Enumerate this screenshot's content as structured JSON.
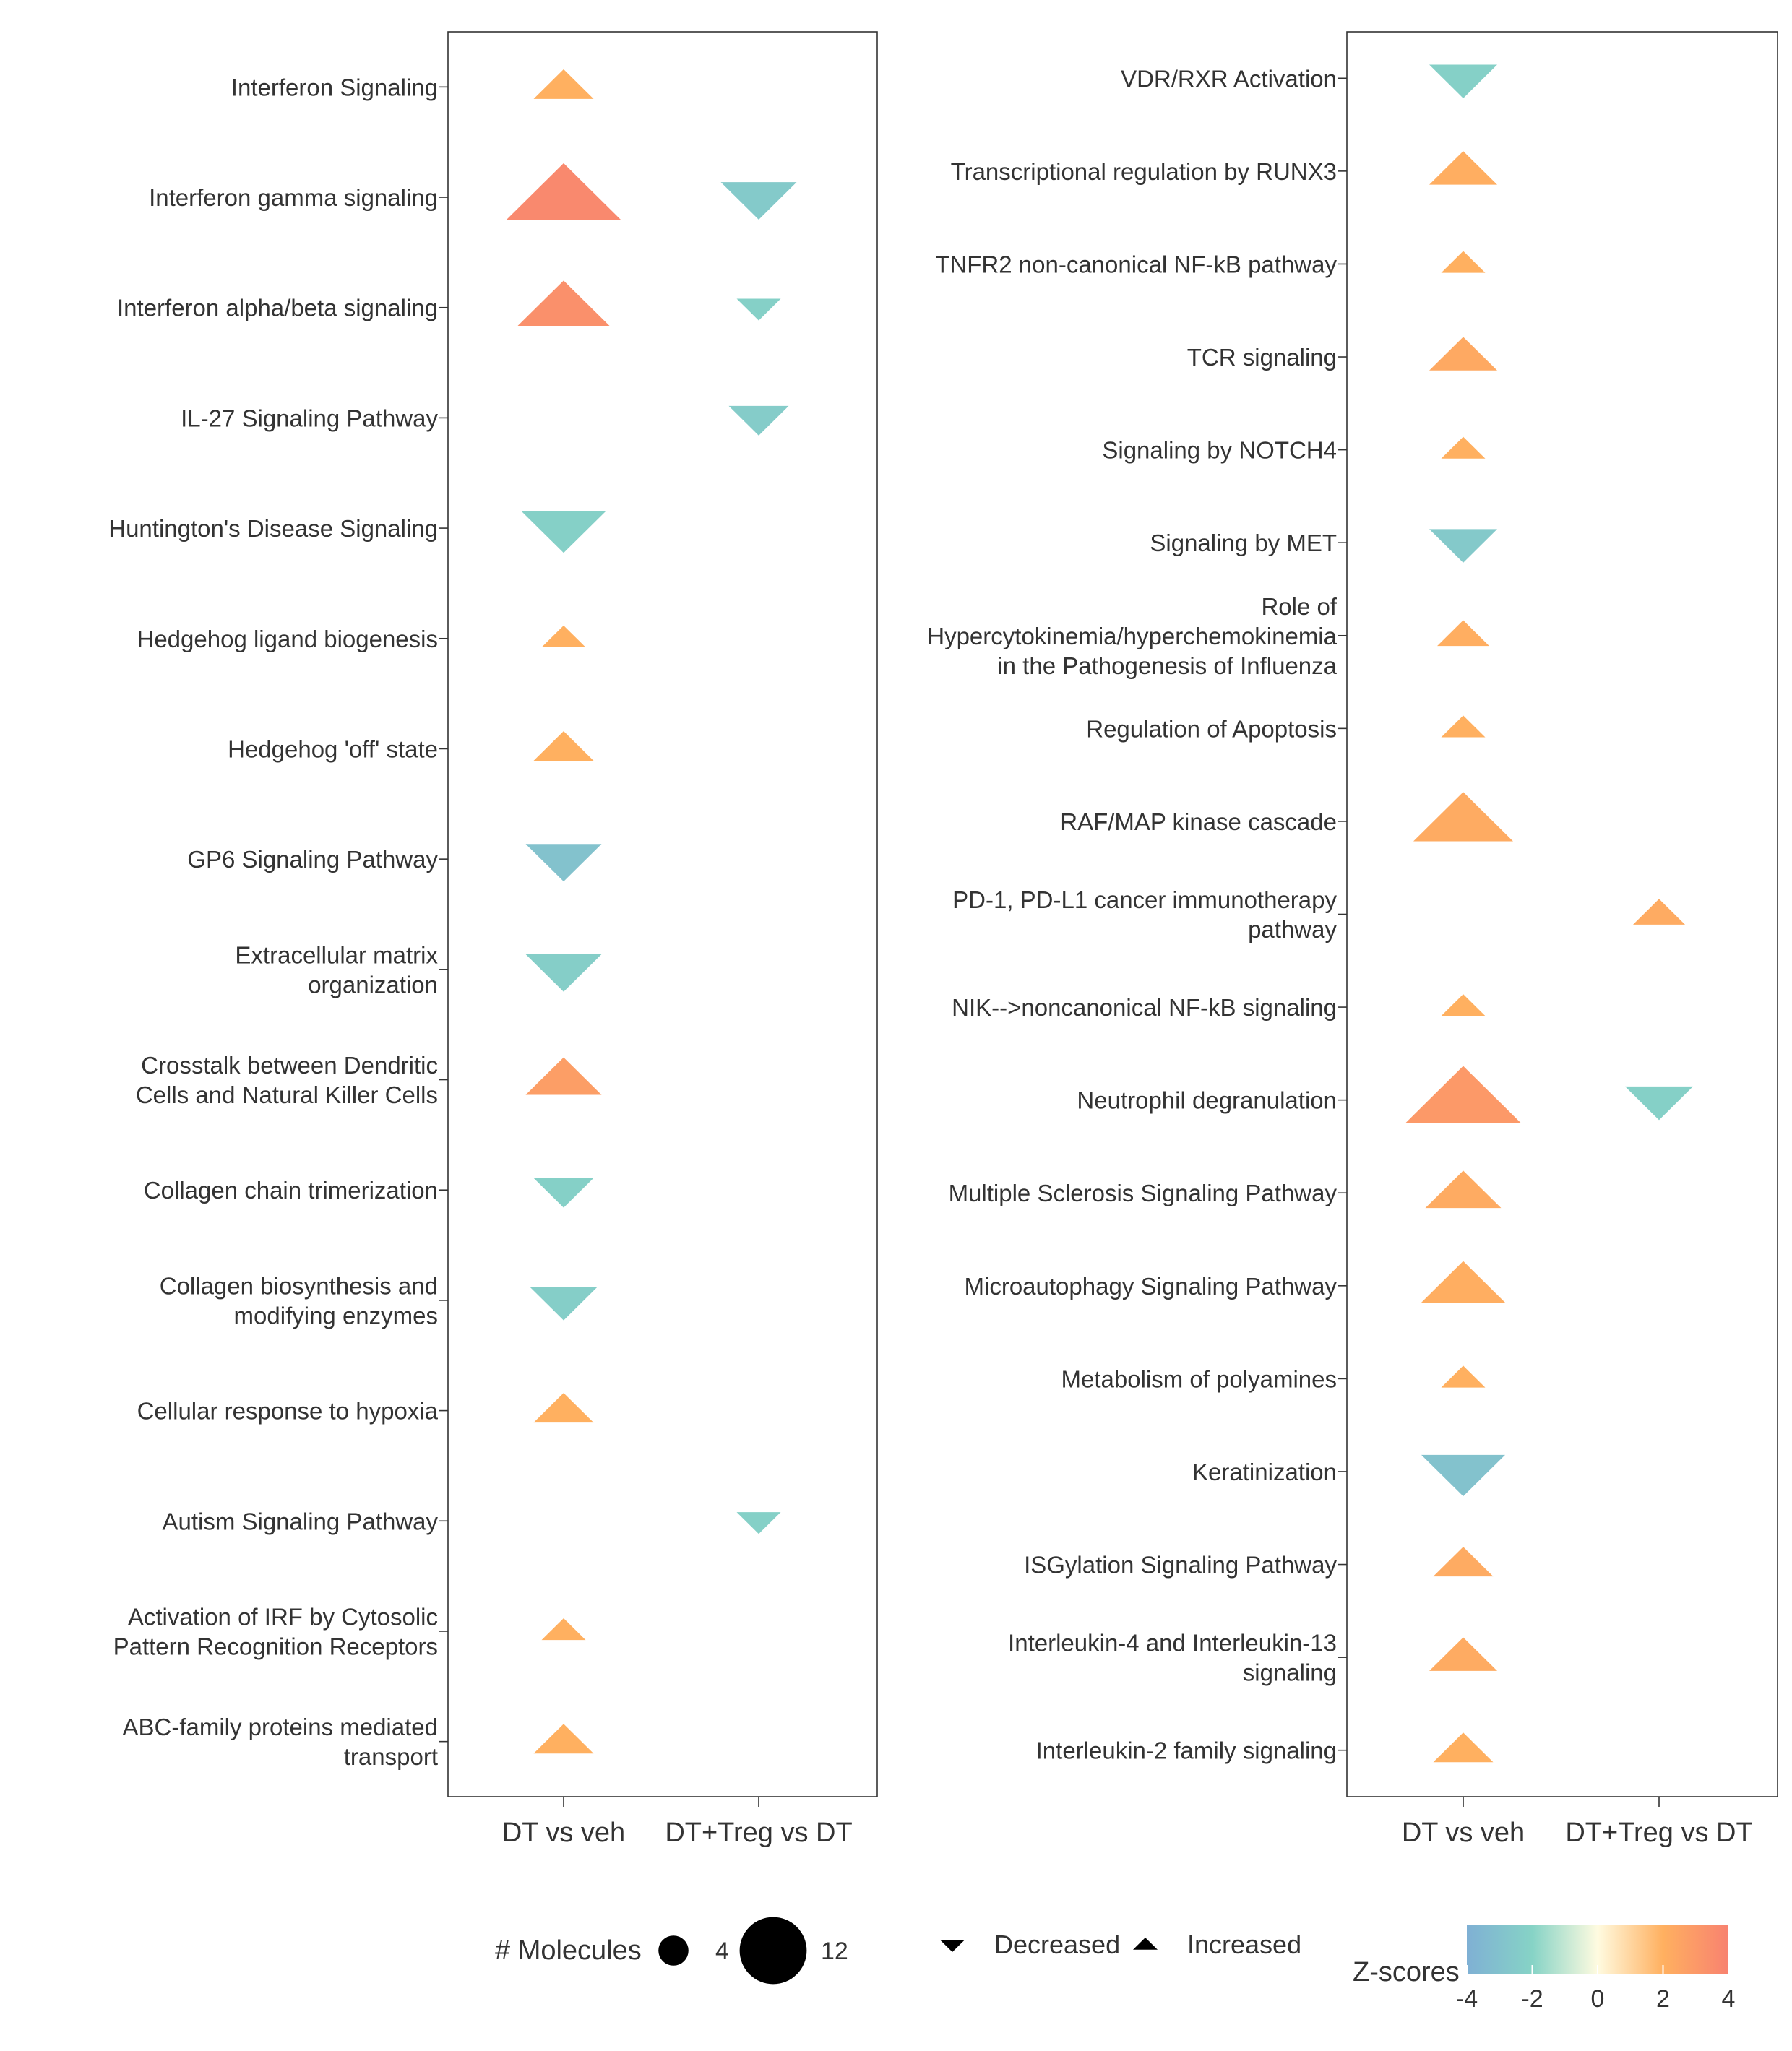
{
  "chart_data": [
    {
      "type": "scatter",
      "marker": "triangle (up = Increased, down = Decreased)",
      "x_categories": [
        "DT vs veh",
        "DT+Treg vs DT"
      ],
      "points": [
        {
          "pathway": "Interferon Signaling",
          "comparison": "DT vs veh",
          "direction": "Increased",
          "z": 2.0,
          "molecules": 5
        },
        {
          "pathway": "Interferon gamma signaling",
          "comparison": "DT vs veh",
          "direction": "Increased",
          "z": 3.7,
          "molecules": 12
        },
        {
          "pathway": "Interferon gamma signaling",
          "comparison": "DT+Treg vs DT",
          "direction": "Decreased",
          "z": -2.5,
          "molecules": 7
        },
        {
          "pathway": "Interferon alpha/beta signaling",
          "comparison": "DT vs veh",
          "direction": "Increased",
          "z": 3.4,
          "molecules": 9
        },
        {
          "pathway": "Interferon alpha/beta signaling",
          "comparison": "DT+Treg vs DT",
          "direction": "Decreased",
          "z": -2.2,
          "molecules": 3
        },
        {
          "pathway": "IL-27 Signaling Pathway",
          "comparison": "DT+Treg vs DT",
          "direction": "Decreased",
          "z": -2.4,
          "molecules": 5
        },
        {
          "pathway": "Huntington's Disease Signaling",
          "comparison": "DT vs veh",
          "direction": "Decreased",
          "z": -2.2,
          "molecules": 8
        },
        {
          "pathway": "Hedgehog ligand biogenesis",
          "comparison": "DT vs veh",
          "direction": "Increased",
          "z": 2.0,
          "molecules": 3
        },
        {
          "pathway": "Hedgehog 'off' state",
          "comparison": "DT vs veh",
          "direction": "Increased",
          "z": 2.0,
          "molecules": 5
        },
        {
          "pathway": "GP6 Signaling Pathway",
          "comparison": "DT vs veh",
          "direction": "Decreased",
          "z": -3.0,
          "molecules": 7
        },
        {
          "pathway": "Extracellular matrix organization",
          "comparison": "DT vs veh",
          "direction": "Decreased",
          "z": -2.3,
          "molecules": 7
        },
        {
          "pathway": "Crosstalk between Dendritic Cells and Natural Killer Cells",
          "comparison": "DT vs veh",
          "direction": "Increased",
          "z": 2.8,
          "molecules": 7
        },
        {
          "pathway": "Collagen chain trimerization",
          "comparison": "DT vs veh",
          "direction": "Decreased",
          "z": -2.2,
          "molecules": 5
        },
        {
          "pathway": "Collagen biosynthesis and modifying enzymes",
          "comparison": "DT vs veh",
          "direction": "Decreased",
          "z": -2.3,
          "molecules": 6
        },
        {
          "pathway": "Cellular response to hypoxia",
          "comparison": "DT vs veh",
          "direction": "Increased",
          "z": 2.0,
          "molecules": 5
        },
        {
          "pathway": "Autism Signaling Pathway",
          "comparison": "DT+Treg vs DT",
          "direction": "Decreased",
          "z": -2.2,
          "molecules": 3
        },
        {
          "pathway": "Activation of IRF by Cytosolic Pattern Recognition Receptors",
          "comparison": "DT vs veh",
          "direction": "Increased",
          "z": 2.0,
          "molecules": 3
        },
        {
          "pathway": "ABC-family proteins mediated transport",
          "comparison": "DT vs veh",
          "direction": "Increased",
          "z": 2.0,
          "molecules": 5
        }
      ]
    },
    {
      "type": "scatter",
      "marker": "triangle (up = Increased, down = Decreased)",
      "x_categories": [
        "DT vs veh",
        "DT+Treg vs DT"
      ],
      "points": [
        {
          "pathway": "VDR/RXR Activation",
          "comparison": "DT vs veh",
          "direction": "Decreased",
          "z": -2.2,
          "molecules": 6
        },
        {
          "pathway": "Transcriptional regulation by RUNX3",
          "comparison": "DT vs veh",
          "direction": "Increased",
          "z": 2.1,
          "molecules": 6
        },
        {
          "pathway": "TNFR2 non-canonical NF-kB pathway",
          "comparison": "DT vs veh",
          "direction": "Increased",
          "z": 2.0,
          "molecules": 3
        },
        {
          "pathway": "TCR signaling",
          "comparison": "DT vs veh",
          "direction": "Increased",
          "z": 2.3,
          "molecules": 6
        },
        {
          "pathway": "Signaling by NOTCH4",
          "comparison": "DT vs veh",
          "direction": "Increased",
          "z": 2.0,
          "molecules": 3
        },
        {
          "pathway": "Signaling by MET",
          "comparison": "DT vs veh",
          "direction": "Decreased",
          "z": -2.6,
          "molecules": 6
        },
        {
          "pathway": "Role of Hypercytokinemia/hyperchemokinemia in the Pathogenesis of Influenza",
          "comparison": "DT vs veh",
          "direction": "Increased",
          "z": 2.1,
          "molecules": 4
        },
        {
          "pathway": "Regulation of Apoptosis",
          "comparison": "DT vs veh",
          "direction": "Increased",
          "z": 2.0,
          "molecules": 3
        },
        {
          "pathway": "RAF/MAP kinase cascade",
          "comparison": "DT vs veh",
          "direction": "Increased",
          "z": 2.2,
          "molecules": 10
        },
        {
          "pathway": "PD-1, PD-L1 cancer immunotherapy pathway",
          "comparison": "DT+Treg vs DT",
          "direction": "Increased",
          "z": 2.2,
          "molecules": 4
        },
        {
          "pathway": "NIK-->noncanonical NF-kB signaling",
          "comparison": "DT vs veh",
          "direction": "Increased",
          "z": 2.0,
          "molecules": 3
        },
        {
          "pathway": "Neutrophil degranulation",
          "comparison": "DT vs veh",
          "direction": "Increased",
          "z": 3.0,
          "molecules": 12
        },
        {
          "pathway": "Neutrophil degranulation",
          "comparison": "DT+Treg vs DT",
          "direction": "Decreased",
          "z": -2.2,
          "molecules": 6
        },
        {
          "pathway": "Multiple Sclerosis Signaling Pathway",
          "comparison": "DT vs veh",
          "direction": "Increased",
          "z": 2.2,
          "molecules": 7
        },
        {
          "pathway": "Microautophagy Signaling Pathway",
          "comparison": "DT vs veh",
          "direction": "Increased",
          "z": 2.1,
          "molecules": 8
        },
        {
          "pathway": "Metabolism of polyamines",
          "comparison": "DT vs veh",
          "direction": "Increased",
          "z": 2.0,
          "molecules": 3
        },
        {
          "pathway": "Keratinization",
          "comparison": "DT vs veh",
          "direction": "Decreased",
          "z": -3.0,
          "molecules": 8
        },
        {
          "pathway": "ISGylation Signaling Pathway",
          "comparison": "DT vs veh",
          "direction": "Increased",
          "z": 2.2,
          "molecules": 5
        },
        {
          "pathway": "Interleukin-4 and Interleukin-13 signaling",
          "comparison": "DT vs veh",
          "direction": "Increased",
          "z": 2.2,
          "molecules": 6
        },
        {
          "pathway": "Interleukin-2 family signaling",
          "comparison": "DT vs veh",
          "direction": "Increased",
          "z": 2.0,
          "molecules": 5
        }
      ]
    }
  ],
  "legend": {
    "molecules": {
      "title": "# Molecules",
      "items": [
        {
          "label": "4",
          "value": 4
        },
        {
          "label": "12",
          "value": 12
        }
      ]
    },
    "direction": {
      "items": [
        {
          "label": "Decreased",
          "shape": "triangle-down"
        },
        {
          "label": "Increased",
          "shape": "triangle-up"
        }
      ]
    },
    "zscore": {
      "title": "Z-scores",
      "range": [
        -4,
        4
      ],
      "ticks": [
        {
          "label": "-4",
          "value": -4
        },
        {
          "label": "-2",
          "value": -2
        },
        {
          "label": "0",
          "value": 0
        },
        {
          "label": "2",
          "value": 2
        },
        {
          "label": "4",
          "value": 4
        }
      ]
    }
  },
  "colors": {
    "scale": [
      "#7fb0d4",
      "#86d3c6",
      "#fffbe0",
      "#ffb060",
      "#f88270"
    ],
    "axis": "#333333"
  }
}
